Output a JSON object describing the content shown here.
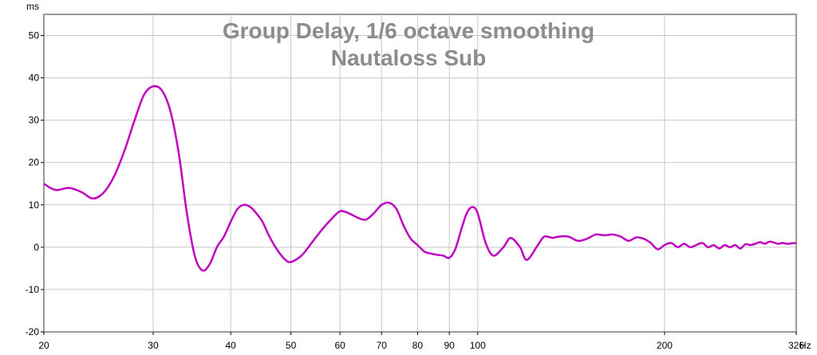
{
  "chart_data": {
    "type": "line",
    "title": "Group Delay, 1/6 octave smoothing",
    "subtitle": "Nautaloss Sub",
    "ylabel": "ms",
    "xlabel": "Hz",
    "x_scale": "log",
    "xlim": [
      20,
      326
    ],
    "ylim": [
      -20,
      55
    ],
    "x_ticks": [
      20,
      30,
      40,
      50,
      60,
      70,
      80,
      90,
      100,
      200,
      326
    ],
    "x_tick_labels": [
      "20",
      "30",
      "40",
      "50",
      "60",
      "70",
      "80",
      "90",
      "100",
      "200",
      "326"
    ],
    "y_ticks": [
      -20,
      -10,
      0,
      10,
      20,
      30,
      40,
      50
    ],
    "y_tick_labels": [
      "-20",
      "-10",
      "0",
      "10",
      "20",
      "30",
      "40",
      "50"
    ],
    "grid": true,
    "series": [
      {
        "color": "#c000c0",
        "x": [
          20,
          20.5,
          21,
          22,
          23,
          24,
          25,
          26,
          27,
          28,
          29,
          30,
          31,
          32,
          33,
          34,
          35,
          36,
          37,
          38,
          39,
          40,
          41,
          42,
          43,
          44,
          45,
          46,
          47,
          48,
          49,
          50,
          52,
          54,
          56,
          58,
          60,
          62,
          64,
          66,
          68,
          70,
          72,
          74,
          76,
          78,
          80,
          82,
          84,
          86,
          88,
          90,
          92,
          94,
          96,
          98,
          100,
          103,
          106,
          110,
          113,
          117,
          120,
          125,
          128,
          132,
          135,
          140,
          145,
          150,
          155,
          160,
          165,
          170,
          175,
          180,
          185,
          190,
          195,
          200,
          205,
          210,
          215,
          220,
          225,
          230,
          235,
          240,
          245,
          250,
          255,
          260,
          265,
          270,
          275,
          280,
          285,
          290,
          295,
          300,
          305,
          310,
          315,
          320,
          326
        ],
        "y": [
          15,
          14,
          13.5,
          14,
          13,
          11.5,
          13,
          17,
          23,
          30,
          36,
          38,
          37,
          32,
          22,
          8,
          -2,
          -5.5,
          -4,
          0,
          2.5,
          6,
          9,
          10,
          9.5,
          8,
          6,
          3,
          0.5,
          -1.5,
          -3,
          -3.5,
          -2,
          1,
          4,
          6.5,
          8.5,
          8,
          7,
          6.5,
          8,
          10,
          10.5,
          9,
          5,
          2,
          0.5,
          -1,
          -1.5,
          -1.8,
          -2,
          -2.5,
          -0.5,
          4,
          8,
          9.5,
          8,
          1,
          -2,
          0,
          2.2,
          0,
          -3,
          0.5,
          2.5,
          2.2,
          2.5,
          2.5,
          1.5,
          2,
          3,
          2.8,
          3,
          2.5,
          1.5,
          2.3,
          2,
          1,
          -0.5,
          0.5,
          1,
          0,
          0.8,
          0,
          0.5,
          1,
          0,
          0.5,
          -0.3,
          0.5,
          0,
          0.5,
          -0.3,
          0.7,
          0.5,
          0.8,
          1.2,
          0.8,
          1.3,
          1.1,
          0.8,
          1,
          0.8,
          0.9,
          1
        ]
      }
    ]
  }
}
